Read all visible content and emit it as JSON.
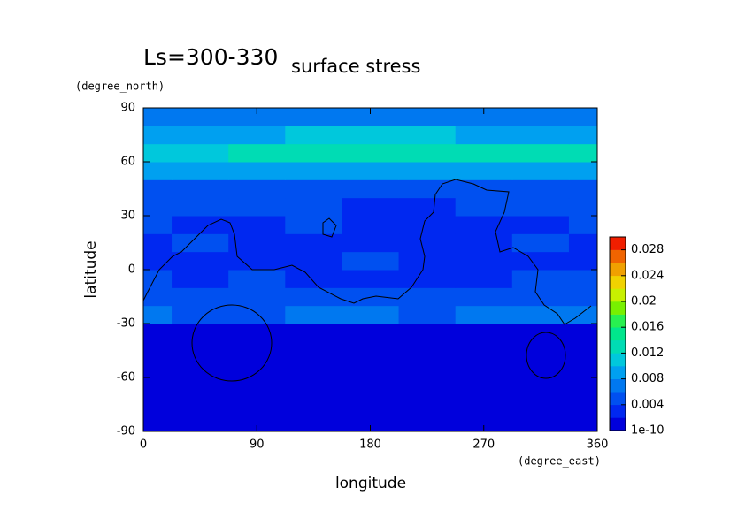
{
  "chart_data": {
    "type": "heatmap",
    "title": "Ls=300-330",
    "subtitle": "surface stress",
    "x_label": "longitude",
    "y_label": "latitude",
    "x_units": "(degree_east)",
    "y_units": "(degree_north)",
    "xlim": [
      0,
      360
    ],
    "ylim": [
      -90,
      90
    ],
    "xticks": [
      0,
      90,
      180,
      270,
      360
    ],
    "yticks": [
      -90,
      -60,
      -30,
      0,
      30,
      60,
      90
    ],
    "x": [
      0,
      45,
      90,
      135,
      180,
      225,
      270,
      315,
      360
    ],
    "y": [
      -85,
      -75,
      -65,
      -55,
      -45,
      -35,
      -25,
      -15,
      -5,
      5,
      15,
      25,
      35,
      45,
      55,
      65,
      75,
      85
    ],
    "z": [
      [
        0.001,
        0.001,
        0.001,
        0.001,
        0.001,
        0.001,
        0.001,
        0.001,
        0.001
      ],
      [
        0.001,
        0.001,
        0.001,
        0.001,
        0.001,
        0.001,
        0.001,
        0.001,
        0.001
      ],
      [
        0.001,
        0.001,
        0.001,
        0.001,
        0.001,
        0.001,
        0.001,
        0.001,
        0.001
      ],
      [
        0.001,
        0.001,
        0.001,
        0.001,
        0.001,
        0.001,
        0.001,
        0.001,
        0.001
      ],
      [
        0.001,
        0.001,
        0.001,
        0.001,
        0.001,
        0.001,
        0.001,
        0.001,
        0.001
      ],
      [
        0.0015,
        0.0015,
        0.0015,
        0.0015,
        0.0015,
        0.0015,
        0.0015,
        0.0015,
        0.0015
      ],
      [
        0.006,
        0.005,
        0.005,
        0.006,
        0.006,
        0.005,
        0.006,
        0.007,
        0.006
      ],
      [
        0.005,
        0.004,
        0.004,
        0.004,
        0.004,
        0.004,
        0.004,
        0.005,
        0.005
      ],
      [
        0.004,
        0.003,
        0.004,
        0.003,
        0.003,
        0.003,
        0.003,
        0.004,
        0.004
      ],
      [
        0.003,
        0.003,
        0.003,
        0.003,
        0.004,
        0.003,
        0.003,
        0.003,
        0.003
      ],
      [
        0.003,
        0.004,
        0.003,
        0.003,
        0.003,
        0.003,
        0.003,
        0.004,
        0.003
      ],
      [
        0.004,
        0.003,
        0.003,
        0.004,
        0.003,
        0.003,
        0.003,
        0.003,
        0.004
      ],
      [
        0.004,
        0.004,
        0.004,
        0.004,
        0.003,
        0.003,
        0.004,
        0.004,
        0.004
      ],
      [
        0.005,
        0.005,
        0.005,
        0.005,
        0.005,
        0.004,
        0.005,
        0.005,
        0.005
      ],
      [
        0.008,
        0.008,
        0.008,
        0.009,
        0.009,
        0.008,
        0.009,
        0.009,
        0.008
      ],
      [
        0.011,
        0.011,
        0.012,
        0.013,
        0.013,
        0.013,
        0.012,
        0.013,
        0.012
      ],
      [
        0.009,
        0.009,
        0.009,
        0.01,
        0.01,
        0.01,
        0.009,
        0.009,
        0.009
      ],
      [
        0.006,
        0.006,
        0.006,
        0.006,
        0.006,
        0.006,
        0.006,
        0.006,
        0.006
      ]
    ],
    "levels": [
      1e-10,
      0.002,
      0.004,
      0.006,
      0.008,
      0.01,
      0.012,
      0.014,
      0.016,
      0.018,
      0.02,
      0.022,
      0.024,
      0.026,
      0.028,
      0.03
    ],
    "colors": [
      "#0000dc",
      "#0028f0",
      "#0050f0",
      "#0078f0",
      "#00a0f0",
      "#00c8dc",
      "#00dcb4",
      "#00e68c",
      "#28f050",
      "#78f000",
      "#c8f000",
      "#f0d200",
      "#f0a000",
      "#f06400",
      "#f01e00"
    ],
    "colorbar_ticks": [
      1e-10,
      0.004,
      0.008,
      0.012,
      0.016,
      0.02,
      0.024,
      0.028
    ]
  }
}
